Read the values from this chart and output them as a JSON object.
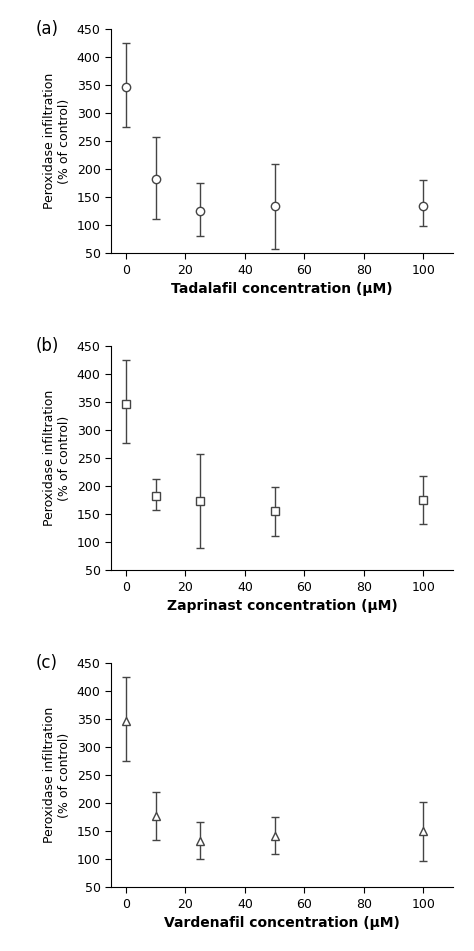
{
  "panels": [
    {
      "label": "(a)",
      "xlabel": "Tadalafil concentration (μM)",
      "marker": "o",
      "x": [
        0,
        10,
        25,
        50,
        100
      ],
      "y": [
        348,
        182,
        126,
        135,
        135
      ],
      "yerr_low": [
        73,
        70,
        45,
        78,
        37
      ],
      "yerr_high": [
        78,
        75,
        50,
        75,
        45
      ]
    },
    {
      "label": "(b)",
      "xlabel": "Zaprinast concentration (μM)",
      "marker": "s",
      "x": [
        0,
        10,
        25,
        50,
        100
      ],
      "y": [
        348,
        183,
        173,
        155,
        175
      ],
      "yerr_low": [
        70,
        25,
        83,
        43,
        43
      ],
      "yerr_high": [
        78,
        30,
        85,
        43,
        43
      ]
    },
    {
      "label": "(c)",
      "xlabel": "Vardenafil concentration (μM)",
      "marker": "^",
      "x": [
        0,
        10,
        25,
        50,
        100
      ],
      "y": [
        348,
        178,
        133,
        142,
        150
      ],
      "yerr_low": [
        73,
        43,
        33,
        33,
        53
      ],
      "yerr_high": [
        78,
        43,
        33,
        33,
        53
      ]
    }
  ],
  "ylabel": "Peroxidase infiltration\n(% of control)",
  "ylim": [
    50,
    450
  ],
  "yticks": [
    50,
    100,
    150,
    200,
    250,
    300,
    350,
    400,
    450
  ],
  "xlim": [
    -5,
    110
  ],
  "xticks": [
    0,
    20,
    40,
    60,
    80,
    100
  ],
  "line_color": "#444444",
  "marker_facecolor": "white",
  "marker_edgecolor": "#444444",
  "marker_size": 6,
  "linewidth": 1.0,
  "capsize": 3,
  "elinewidth": 1.0,
  "background_color": "#ffffff",
  "xlabel_fontsize": 10,
  "tick_fontsize": 9,
  "ylabel_fontsize": 9,
  "panel_label_fontsize": 12
}
